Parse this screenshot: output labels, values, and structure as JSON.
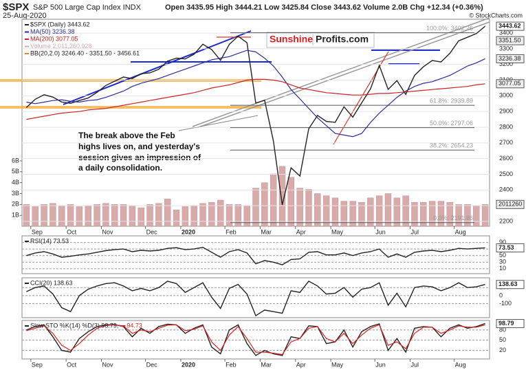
{
  "header": {
    "symbol": "$SPX",
    "name": "S&P 500 Large Cap Index INDX",
    "date": "25-Aug-2020",
    "quote": "Open 3435.95 High 3444.21 Low 3425.84 Close 3443.62 Volume 2.0B Chg +12.34 (+0.36%)",
    "source": "© StockCharts.com",
    "logo_left": "Sunshine",
    "logo_right": "Profits.com",
    "annotation": [
      "The break above the Feb",
      "highs lives on, and yesterday's",
      "session gives an impression of",
      "a daily consolidation."
    ]
  },
  "chart_data": [
    {
      "type": "line",
      "categories": [
        null,
        "Sep",
        null,
        null,
        null,
        "Oct",
        null,
        null,
        null,
        "Nov",
        null,
        null,
        null,
        null,
        "Dec",
        null,
        null,
        null,
        "2020",
        null,
        null,
        null,
        null,
        "Feb",
        null,
        null,
        null,
        "Mar",
        null,
        null,
        null,
        "Apr",
        null,
        null,
        null,
        "May",
        null,
        null,
        null,
        null,
        "Jun",
        null,
        null,
        null,
        "Jul",
        null,
        null,
        null,
        null,
        "Aug",
        null,
        null,
        null
      ],
      "series": [
        {
          "name": "$SPX (Daily) 3443.62",
          "color": "#222222",
          "values": [
            2926,
            2978,
            3007,
            2992,
            2961,
            2952,
            2970,
            2986,
            3022,
            3066,
            3093,
            3120,
            3110,
            3141,
            3146,
            3169,
            3221,
            3240,
            3235,
            3265,
            3329,
            3295,
            3226,
            3328,
            3380,
            3338,
            2954,
            2972,
            2711,
            2305,
            2541,
            2489,
            2790,
            2875,
            2837,
            2831,
            2930,
            2864,
            2955,
            3044,
            3194,
            3041,
            3097,
            3009,
            3130,
            3185,
            3225,
            3216,
            3271,
            3351,
            3373,
            3397,
            3443.62
          ]
        },
        {
          "name": "MA(50) 3236.38",
          "color": "#2a2aa0",
          "values": [
            2960,
            2950,
            2960,
            2970,
            2975,
            2965,
            2960,
            2970,
            2975,
            2990,
            3010,
            3030,
            3060,
            3080,
            3095,
            3110,
            3130,
            3150,
            3170,
            3190,
            3210,
            3230,
            3240,
            3250,
            3270,
            3290,
            3280,
            3240,
            3190,
            3120,
            3040,
            2980,
            2920,
            2860,
            2810,
            2760,
            2750,
            2740,
            2760,
            2830,
            2890,
            2940,
            2990,
            3030,
            3060,
            3080,
            3090,
            3110,
            3130,
            3160,
            3190,
            3210,
            3236.38
          ]
        },
        {
          "name": "MA(200) 3077.05",
          "color": "#cc2222",
          "values": [
            2850,
            2860,
            2870,
            2880,
            2890,
            2895,
            2900,
            2910,
            2915,
            2920,
            2930,
            2940,
            2950,
            2960,
            2970,
            2980,
            2990,
            3000,
            3010,
            3020,
            3035,
            3050,
            3060,
            3070,
            3085,
            3100,
            3105,
            3105,
            3100,
            3090,
            3070,
            3050,
            3040,
            3030,
            3020,
            3015,
            3010,
            3005,
            3005,
            3010,
            3015,
            3015,
            3020,
            3025,
            3030,
            3035,
            3040,
            3045,
            3050,
            3055,
            3060,
            3070,
            3077.05
          ]
        },
        {
          "name": "Volume 2,011,260,928",
          "color": "#d9aaaa",
          "axis": "y2",
          "values": [
            2.0,
            1.8,
            2.0,
            2.1,
            1.9,
            2.0,
            1.8,
            1.9,
            2.0,
            2.1,
            2.0,
            2.0,
            1.9,
            1.7,
            2.0,
            2.1,
            2.5,
            1.5,
            1.8,
            1.9,
            2.1,
            2.2,
            2.4,
            2.0,
            2.0,
            1.9,
            3.5,
            4.0,
            4.8,
            5.5,
            4.5,
            3.5,
            3.4,
            3.0,
            2.8,
            2.6,
            2.3,
            2.3,
            2.2,
            2.6,
            2.8,
            3.0,
            2.6,
            2.8,
            2.2,
            2.2,
            2.3,
            2.3,
            2.2,
            2.0,
            2.0,
            1.9,
            2.0
          ]
        }
      ],
      "legend_extra": "BB(20,2.0) 3246.40 - 3351.50 - 3456.61",
      "ylim": [
        2169,
        3488
      ],
      "yticks": [
        2200,
        2300,
        2400,
        2500,
        2600,
        2700,
        2800,
        2900,
        3000,
        3100,
        3200,
        3300,
        3400
      ],
      "y2lim": [
        0,
        19
      ],
      "y2ticks": [
        {
          "value": 1,
          "label": "1B"
        },
        {
          "value": 2,
          "label": "2B"
        },
        {
          "value": 3,
          "label": "3B"
        },
        {
          "value": 4,
          "label": "4B"
        },
        {
          "value": 5,
          "label": "5B"
        },
        {
          "value": 6,
          "label": "6B"
        }
      ],
      "y2_tag": "2011260",
      "tags": [
        3443.62,
        {
          "value": 3351.5,
          "label": "3351.50"
        },
        3236.38,
        3077.05
      ],
      "fib_levels": [
        {
          "value": 3402.26,
          "label": "100.0%: 3402.26"
        },
        {
          "value": 2939.89,
          "label": "61.8%: 2939.89"
        },
        {
          "value": 2797.06,
          "label": "50.0%: 2797.06"
        },
        {
          "value": 2654.23,
          "label": "38.2%: 2654.23"
        },
        {
          "value": 2191.86,
          "label": "0.0%: 2191.86"
        }
      ]
    },
    {
      "type": "line",
      "series": [
        {
          "name": "RSI(14) 73.53",
          "color": "#222222",
          "values": [
            50,
            58,
            62,
            55,
            45,
            48,
            52,
            55,
            60,
            65,
            68,
            70,
            62,
            66,
            64,
            66,
            72,
            74,
            68,
            70,
            75,
            60,
            45,
            62,
            68,
            58,
            25,
            35,
            30,
            22,
            38,
            40,
            60,
            62,
            52,
            52,
            58,
            50,
            58,
            62,
            70,
            45,
            55,
            45,
            60,
            64,
            66,
            62,
            66,
            72,
            70,
            72,
            73.53
          ]
        }
      ],
      "ylim": [
        -5,
        110
      ],
      "yticks": [
        10,
        30,
        50,
        70,
        90
      ],
      "tags": [
        73.53
      ]
    },
    {
      "type": "line",
      "series": [
        {
          "name": "CCI(20) 138.63",
          "color": "#222222",
          "values": [
            50,
            100,
            120,
            20,
            -150,
            -200,
            0,
            80,
            120,
            150,
            160,
            120,
            60,
            90,
            60,
            100,
            180,
            150,
            40,
            100,
            160,
            -20,
            -160,
            90,
            140,
            20,
            -250,
            -180,
            -200,
            -220,
            60,
            40,
            180,
            120,
            20,
            30,
            100,
            -20,
            80,
            100,
            160,
            -120,
            30,
            -140,
            100,
            120,
            110,
            60,
            100,
            160,
            100,
            110,
            138.63
          ]
        }
      ],
      "ylim": [
        -275,
        222
      ],
      "yticks": [
        -100,
        0,
        100
      ],
      "tags": [
        138.63
      ]
    },
    {
      "type": "line",
      "series": [
        {
          "name": "Slow STO %K(14) %D(3) 98.79,",
          "color": "#222222",
          "values": [
            80,
            90,
            95,
            60,
            20,
            15,
            55,
            75,
            90,
            95,
            96,
            90,
            60,
            85,
            70,
            90,
            97,
            95,
            70,
            85,
            95,
            30,
            10,
            80,
            95,
            40,
            5,
            20,
            10,
            5,
            60,
            55,
            92,
            90,
            40,
            45,
            80,
            30,
            75,
            90,
            98,
            20,
            55,
            15,
            85,
            90,
            88,
            60,
            85,
            95,
            85,
            90,
            98.79
          ]
        },
        {
          "name": "94.73",
          "color": "#dd2222",
          "values": [
            78,
            85,
            92,
            70,
            35,
            20,
            40,
            65,
            85,
            93,
            95,
            92,
            70,
            80,
            75,
            85,
            94,
            95,
            78,
            82,
            92,
            45,
            20,
            65,
            90,
            55,
            15,
            15,
            12,
            8,
            45,
            55,
            85,
            90,
            55,
            45,
            70,
            40,
            65,
            85,
            95,
            35,
            45,
            25,
            70,
            88,
            88,
            70,
            80,
            92,
            88,
            88,
            94.73
          ]
        }
      ],
      "ylim": [
        -5,
        108
      ],
      "yticks": [
        20,
        50,
        80
      ],
      "tags": [
        98.79
      ]
    }
  ]
}
